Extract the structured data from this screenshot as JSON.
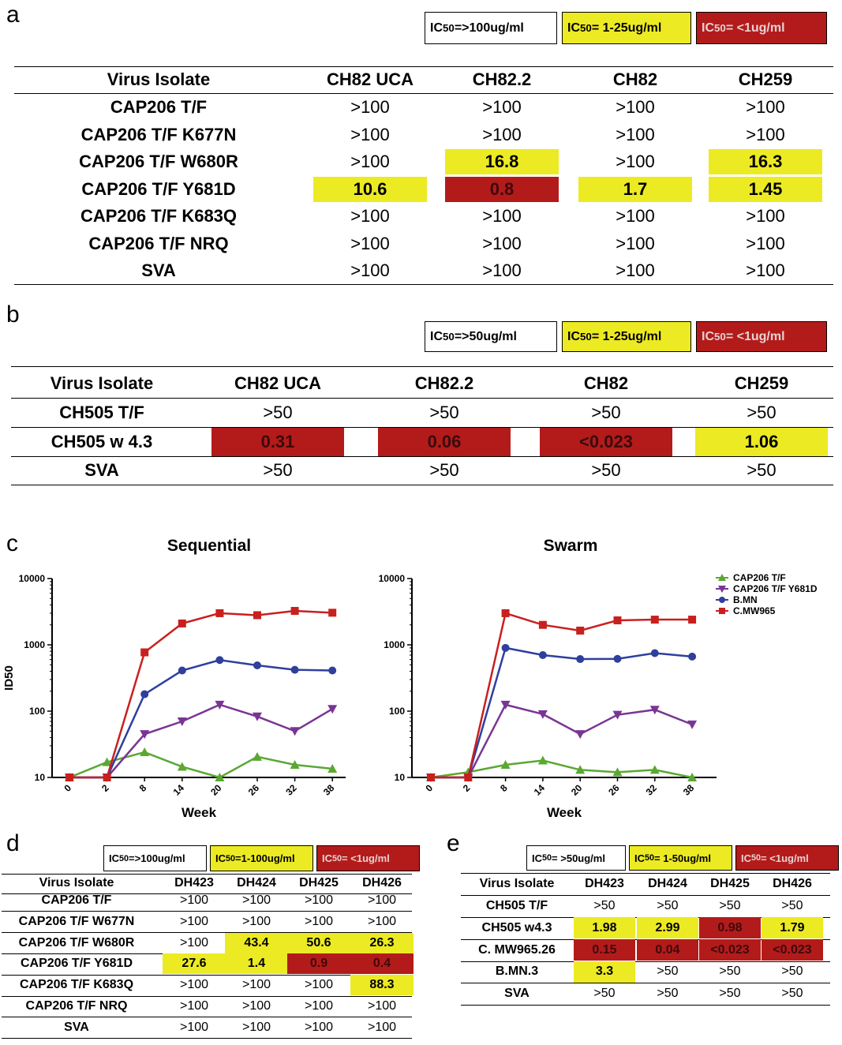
{
  "panels": {
    "a": "a",
    "b": "b",
    "c": "c",
    "d": "d",
    "e": "e"
  },
  "legends": {
    "a": [
      {
        "pre": "IC",
        "sub": "50",
        "post": "=>100ug/ml",
        "color": "white"
      },
      {
        "pre": "IC",
        "sub": "50",
        "post": "= 1-25ug/ml",
        "color": "yellow"
      },
      {
        "pre": "IC",
        "sub": "50",
        "post": "= <1ug/ml",
        "color": "red"
      }
    ],
    "b": [
      {
        "pre": "IC",
        "sub": "50",
        "post": "=>50ug/ml",
        "color": "white"
      },
      {
        "pre": "IC",
        "sub": "50",
        "post": "= 1-25ug/ml",
        "color": "yellow"
      },
      {
        "pre": "IC",
        "sub": "50",
        "post": "= <1ug/ml",
        "color": "red"
      }
    ],
    "d": [
      {
        "pre": "IC",
        "sub": "50",
        "post": "=>100ug/ml",
        "color": "white"
      },
      {
        "pre": "IC",
        "sub": "50",
        "post": "=1-100ug/ml",
        "color": "yellow"
      },
      {
        "pre": "IC",
        "sub": "50",
        "post": "= <1ug/ml",
        "color": "red"
      }
    ],
    "e": [
      {
        "pre": "IC",
        "sub": "50",
        "post": "= >50ug/ml",
        "color": "white"
      },
      {
        "pre": "IC",
        "sub": "50",
        "post": "= 1-50ug/ml",
        "color": "yellow"
      },
      {
        "pre": "IC",
        "sub": "50",
        "post": "= <1ug/ml",
        "color": "red"
      }
    ]
  },
  "tables": {
    "a": {
      "headers": [
        "Virus Isolate",
        "CH82 UCA",
        "CH82.2",
        "CH82",
        "CH259"
      ],
      "rows": [
        {
          "label": "CAP206 T/F",
          "cells": [
            {
              "v": ">100"
            },
            {
              "v": ">100"
            },
            {
              "v": ">100"
            },
            {
              "v": ">100"
            }
          ]
        },
        {
          "label": "CAP206 T/F K677N",
          "cells": [
            {
              "v": ">100"
            },
            {
              "v": ">100"
            },
            {
              "v": ">100"
            },
            {
              "v": ">100"
            }
          ]
        },
        {
          "label": "CAP206 T/F W680R",
          "cells": [
            {
              "v": ">100"
            },
            {
              "v": "16.8",
              "c": "yellow"
            },
            {
              "v": ">100"
            },
            {
              "v": "16.3",
              "c": "yellow"
            }
          ]
        },
        {
          "label": "CAP206 T/F Y681D",
          "cells": [
            {
              "v": "10.6",
              "c": "yellow"
            },
            {
              "v": "0.8",
              "c": "red"
            },
            {
              "v": "1.7",
              "c": "yellow"
            },
            {
              "v": "1.45",
              "c": "yellow"
            }
          ]
        },
        {
          "label": "CAP206 T/F K683Q",
          "cells": [
            {
              "v": ">100"
            },
            {
              "v": ">100"
            },
            {
              "v": ">100"
            },
            {
              "v": ">100"
            }
          ]
        },
        {
          "label": "CAP206 T/F NRQ",
          "cells": [
            {
              "v": ">100"
            },
            {
              "v": ">100"
            },
            {
              "v": ">100"
            },
            {
              "v": ">100"
            }
          ]
        },
        {
          "label": "SVA",
          "cells": [
            {
              "v": ">100"
            },
            {
              "v": ">100"
            },
            {
              "v": ">100"
            },
            {
              "v": ">100"
            }
          ]
        }
      ]
    },
    "b": {
      "headers": [
        "Virus Isolate",
        "CH82 UCA",
        "CH82.2",
        "CH82",
        "CH259"
      ],
      "rows": [
        {
          "label": "CH505  T/F",
          "cells": [
            {
              "v": ">50"
            },
            {
              "v": ">50"
            },
            {
              "v": ">50"
            },
            {
              "v": ">50"
            }
          ]
        },
        {
          "label": "CH505 w 4.3",
          "cells": [
            {
              "v": "0.31",
              "c": "red"
            },
            {
              "v": "0.06",
              "c": "red"
            },
            {
              "v": "<0.023",
              "c": "red"
            },
            {
              "v": "1.06",
              "c": "yellow"
            }
          ]
        },
        {
          "label": "SVA",
          "cells": [
            {
              "v": ">50"
            },
            {
              "v": ">50"
            },
            {
              "v": ">50"
            },
            {
              "v": ">50"
            }
          ]
        }
      ]
    },
    "d": {
      "headers": [
        "Virus Isolate",
        "DH423",
        "DH424",
        "DH425",
        "DH426"
      ],
      "rows": [
        {
          "label": "CAP206 T/F",
          "cells": [
            {
              "v": ">100"
            },
            {
              "v": ">100"
            },
            {
              "v": ">100"
            },
            {
              "v": ">100"
            }
          ]
        },
        {
          "label": "CAP206 T/F W677N",
          "cells": [
            {
              "v": ">100"
            },
            {
              "v": ">100"
            },
            {
              "v": ">100"
            },
            {
              "v": ">100"
            }
          ]
        },
        {
          "label": "CAP206 T/F W680R",
          "cells": [
            {
              "v": ">100"
            },
            {
              "v": "43.4",
              "c": "yellow"
            },
            {
              "v": "50.6",
              "c": "yellow"
            },
            {
              "v": "26.3",
              "c": "yellow"
            }
          ]
        },
        {
          "label": "CAP206 T/F Y681D",
          "cells": [
            {
              "v": "27.6",
              "c": "yellow"
            },
            {
              "v": "1.4",
              "c": "yellow"
            },
            {
              "v": "0.9",
              "c": "red"
            },
            {
              "v": "0.4",
              "c": "red"
            }
          ]
        },
        {
          "label": "CAP206 T/F K683Q",
          "cells": [
            {
              "v": ">100"
            },
            {
              "v": ">100"
            },
            {
              "v": ">100"
            },
            {
              "v": "88.3",
              "c": "yellow"
            }
          ]
        },
        {
          "label": "CAP206 T/F NRQ",
          "cells": [
            {
              "v": ">100"
            },
            {
              "v": ">100"
            },
            {
              "v": ">100"
            },
            {
              "v": ">100"
            }
          ]
        },
        {
          "label": "SVA",
          "cells": [
            {
              "v": ">100"
            },
            {
              "v": ">100"
            },
            {
              "v": ">100"
            },
            {
              "v": ">100"
            }
          ]
        }
      ]
    },
    "e": {
      "headers": [
        "Virus Isolate",
        "DH423",
        "DH424",
        "DH425",
        "DH426"
      ],
      "rows": [
        {
          "label": "CH505 T/F",
          "cells": [
            {
              "v": ">50"
            },
            {
              "v": ">50"
            },
            {
              "v": ">50"
            },
            {
              "v": ">50"
            }
          ]
        },
        {
          "label": "CH505 w4.3",
          "cells": [
            {
              "v": "1.98",
              "c": "yellow"
            },
            {
              "v": "2.99",
              "c": "yellow"
            },
            {
              "v": "0.98",
              "c": "red"
            },
            {
              "v": "1.79",
              "c": "yellow"
            }
          ]
        },
        {
          "label": "C. MW965.26",
          "cells": [
            {
              "v": "0.15",
              "c": "red"
            },
            {
              "v": "0.04",
              "c": "red"
            },
            {
              "v": "<0.023",
              "c": "red"
            },
            {
              "v": "<0.023",
              "c": "red"
            }
          ]
        },
        {
          "label": "B.MN.3",
          "cells": [
            {
              "v": "3.3",
              "c": "yellow"
            },
            {
              "v": ">50"
            },
            {
              "v": ">50"
            },
            {
              "v": ">50"
            }
          ]
        },
        {
          "label": "SVA",
          "cells": [
            {
              "v": ">50"
            },
            {
              "v": ">50"
            },
            {
              "v": ">50"
            },
            {
              "v": ">50"
            }
          ]
        }
      ]
    }
  },
  "colors": {
    "yellow": "#ecea23",
    "red": "#b31b1b",
    "green": "#5aa832",
    "purple": "#7a3594",
    "blue": "#2f3f9e",
    "darkred": "#c8201e"
  },
  "chart_data": [
    {
      "type": "line",
      "title": "Sequential",
      "xlabel": "Week",
      "ylabel": "ID50",
      "yscale": "log",
      "ylim": [
        10,
        10000
      ],
      "yticks": [
        "10",
        "100",
        "1000",
        "10000"
      ],
      "x": [
        "0",
        "2",
        "8",
        "14",
        "20",
        "26",
        "32",
        "38"
      ],
      "series": [
        {
          "name": "CAP206 T/F",
          "marker": "triangle-up",
          "color": "#5aa832",
          "values": [
            10,
            17,
            24,
            14.5,
            10,
            20.5,
            15.5,
            13.5
          ]
        },
        {
          "name": "CAP206 T/F Y681D",
          "marker": "triangle-down",
          "color": "#7a3594",
          "values": [
            10,
            10,
            45,
            70,
            125,
            83,
            50,
            108
          ]
        },
        {
          "name": "B.MN",
          "marker": "circle",
          "color": "#2f3f9e",
          "values": [
            10,
            10,
            180,
            410,
            590,
            490,
            420,
            410
          ]
        },
        {
          "name": "C.MW965",
          "marker": "square",
          "color": "#c8201e",
          "values": [
            10,
            10,
            770,
            2100,
            3000,
            2800,
            3250,
            3050
          ]
        }
      ]
    },
    {
      "type": "line",
      "title": "Swarm",
      "xlabel": "Week",
      "ylabel": "",
      "yscale": "log",
      "ylim": [
        10,
        10000
      ],
      "yticks": [
        "10",
        "100",
        "1000",
        "10000"
      ],
      "x": [
        "0",
        "2",
        "8",
        "14",
        "20",
        "26",
        "32",
        "38"
      ],
      "series": [
        {
          "name": "CAP206 T/F",
          "marker": "triangle-up",
          "color": "#5aa832",
          "values": [
            10,
            12,
            15.5,
            18,
            13,
            12,
            13,
            10
          ]
        },
        {
          "name": "CAP206 T/F Y681D",
          "marker": "triangle-down",
          "color": "#7a3594",
          "values": [
            10,
            10,
            125,
            90,
            45,
            88,
            105,
            63
          ]
        },
        {
          "name": "B.MN",
          "marker": "circle",
          "color": "#2f3f9e",
          "values": [
            10,
            10,
            900,
            700,
            610,
            615,
            750,
            665
          ]
        },
        {
          "name": "C.MW965",
          "marker": "square",
          "color": "#c8201e",
          "values": [
            10,
            10,
            3000,
            2000,
            1640,
            2340,
            2400,
            2400
          ]
        }
      ],
      "legend": "right"
    }
  ]
}
